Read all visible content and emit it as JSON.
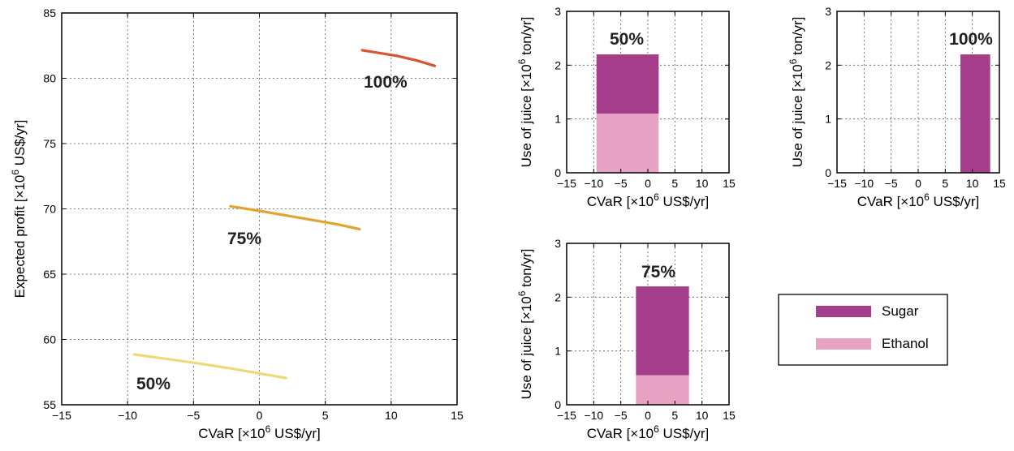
{
  "colors": {
    "sugar": "#a63d8b",
    "ethanol": "#e8a2c4",
    "line_50": "#ecd978",
    "line_75": "#e3a331",
    "line_100": "#d9542f"
  },
  "chart_data": [
    {
      "id": "frontier",
      "type": "line",
      "xlabel": "CVaR [×10⁶ US$/yr]",
      "ylabel": "Expected profit [×10⁶ US$/yr]",
      "xlim": [
        -15,
        15
      ],
      "ylim": [
        55,
        85
      ],
      "xticks": [
        "−15",
        "−10",
        "−5",
        "0",
        "5",
        "10",
        "15"
      ],
      "yticks": [
        "55",
        "60",
        "65",
        "70",
        "75",
        "80",
        "85"
      ],
      "grid": true,
      "series": [
        {
          "name": "50%",
          "color_key": "line_50",
          "x": [
            -9.5,
            -7,
            -4.5,
            -2,
            0,
            2
          ],
          "y": [
            58.85,
            58.5,
            58.15,
            57.75,
            57.4,
            57.05
          ]
        },
        {
          "name": "75%",
          "color_key": "line_75",
          "x": [
            -2.2,
            0,
            2,
            4,
            6,
            7.6
          ],
          "y": [
            70.2,
            69.85,
            69.5,
            69.15,
            68.8,
            68.45
          ]
        },
        {
          "name": "100%",
          "color_key": "line_100",
          "x": [
            7.8,
            9,
            10.5,
            12,
            13.3
          ],
          "y": [
            82.15,
            81.95,
            81.7,
            81.35,
            80.95
          ]
        }
      ],
      "annotations": [
        "50%",
        "75%",
        "100%"
      ]
    },
    {
      "id": "juice_50",
      "type": "bar",
      "label": "50%",
      "xlabel": "CVaR [×10⁶ US$/yr]",
      "ylabel": "Use of juice [×10⁶ ton/yr]",
      "xlim": [
        -15,
        15
      ],
      "ylim": [
        0,
        3
      ],
      "xticks": [
        "−15",
        "−10",
        "−5",
        "0",
        "5",
        "10",
        "15"
      ],
      "yticks": [
        "0",
        "1",
        "2",
        "3"
      ],
      "grid": true,
      "bar": {
        "x_start": -9.5,
        "x_end": 2,
        "ethanol": 1.1,
        "sugar": 1.1
      }
    },
    {
      "id": "juice_100",
      "type": "bar",
      "label": "100%",
      "xlabel": "CVaR [×10⁶ US$/yr]",
      "ylabel": "Use of juice [×10⁶ ton/yr]",
      "xlim": [
        -15,
        15
      ],
      "ylim": [
        0,
        3
      ],
      "xticks": [
        "−15",
        "−10",
        "−5",
        "0",
        "5",
        "10",
        "15"
      ],
      "yticks": [
        "0",
        "1",
        "2",
        "3"
      ],
      "grid": true,
      "bar": {
        "x_start": 7.8,
        "x_end": 13.3,
        "ethanol": 0,
        "sugar": 2.2
      }
    },
    {
      "id": "juice_75",
      "type": "bar",
      "label": "75%",
      "xlabel": "CVaR [×10⁶ US$/yr]",
      "ylabel": "Use of juice [×10⁶ ton/yr]",
      "xlim": [
        -15,
        15
      ],
      "ylim": [
        0,
        3
      ],
      "xticks": [
        "−15",
        "−10",
        "−5",
        "0",
        "5",
        "10",
        "15"
      ],
      "yticks": [
        "0",
        "1",
        "2",
        "3"
      ],
      "grid": true,
      "bar": {
        "x_start": -2.2,
        "x_end": 7.6,
        "ethanol": 0.55,
        "sugar": 1.65
      }
    }
  ],
  "legend": {
    "placement": "right",
    "items": [
      {
        "label": "Sugar",
        "color_key": "sugar"
      },
      {
        "label": "Ethanol",
        "color_key": "ethanol"
      }
    ]
  }
}
